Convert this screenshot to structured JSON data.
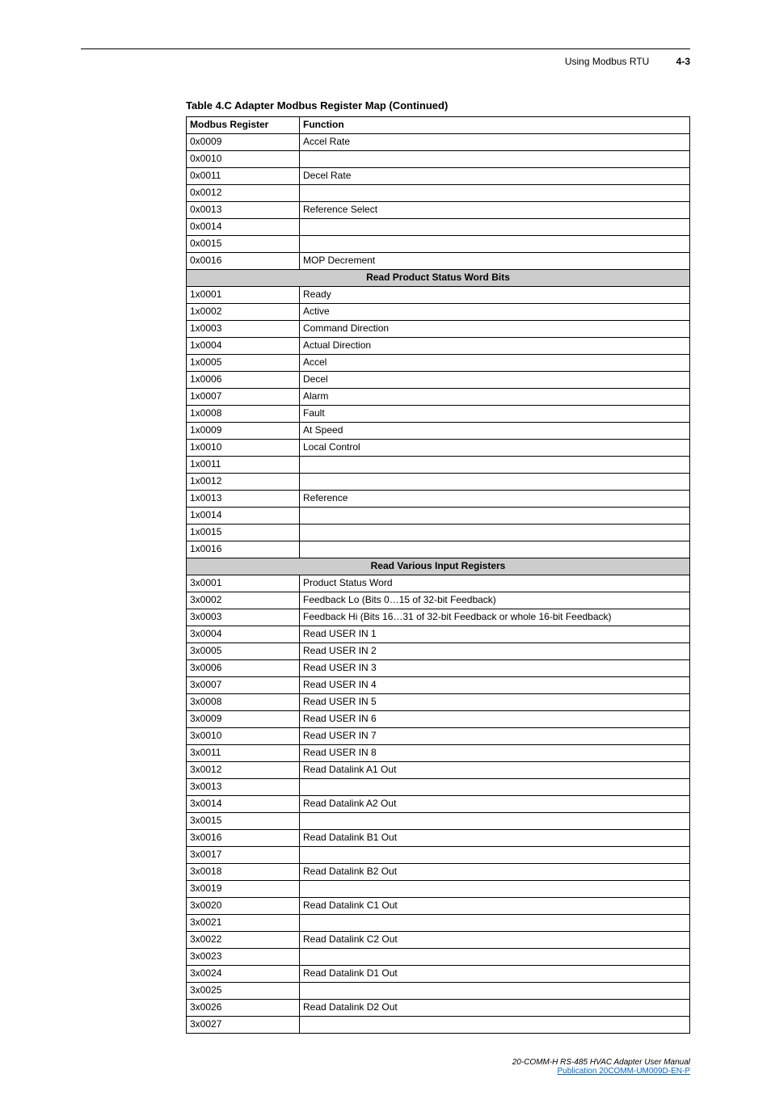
{
  "header": {
    "chapter": "Using Modbus RTU",
    "pagenum": "4-3"
  },
  "caption": "Table 4.C   Adapter Modbus Register Map (Continued)",
  "columns": {
    "reg": "Modbus Register",
    "func": "Function"
  },
  "rows": [
    {
      "reg": "0x0009",
      "func": "Accel Rate"
    },
    {
      "reg": "0x0010",
      "func": ""
    },
    {
      "reg": "0x0011",
      "func": "Decel Rate"
    },
    {
      "reg": "0x0012",
      "func": ""
    },
    {
      "reg": "0x0013",
      "func": "Reference Select"
    },
    {
      "reg": "0x0014",
      "func": ""
    },
    {
      "reg": "0x0015",
      "func": ""
    },
    {
      "reg": "0x0016",
      "func": "MOP Decrement"
    },
    {
      "section": "Read Product Status Word Bits"
    },
    {
      "reg": "1x0001",
      "func": "Ready"
    },
    {
      "reg": "1x0002",
      "func": "Active"
    },
    {
      "reg": "1x0003",
      "func": "Command Direction"
    },
    {
      "reg": "1x0004",
      "func": "Actual Direction"
    },
    {
      "reg": "1x0005",
      "func": "Accel"
    },
    {
      "reg": "1x0006",
      "func": "Decel"
    },
    {
      "reg": "1x0007",
      "func": "Alarm"
    },
    {
      "reg": "1x0008",
      "func": "Fault"
    },
    {
      "reg": "1x0009",
      "func": "At Speed"
    },
    {
      "reg": "1x0010",
      "func": "Local Control"
    },
    {
      "reg": "1x0011",
      "func": ""
    },
    {
      "reg": "1x0012",
      "func": ""
    },
    {
      "reg": "1x0013",
      "func": "Reference"
    },
    {
      "reg": "1x0014",
      "func": ""
    },
    {
      "reg": "1x0015",
      "func": ""
    },
    {
      "reg": "1x0016",
      "func": ""
    },
    {
      "section": "Read Various Input Registers"
    },
    {
      "reg": "3x0001",
      "func": "Product Status Word"
    },
    {
      "reg": "3x0002",
      "func": "Feedback Lo (Bits 0…15 of 32-bit Feedback)"
    },
    {
      "reg": "3x0003",
      "func": "Feedback Hi (Bits 16…31 of 32-bit Feedback or whole 16-bit Feedback)"
    },
    {
      "reg": "3x0004",
      "func": "Read USER IN 1"
    },
    {
      "reg": "3x0005",
      "func": "Read USER IN 2"
    },
    {
      "reg": "3x0006",
      "func": "Read USER IN 3"
    },
    {
      "reg": "3x0007",
      "func": "Read USER IN 4"
    },
    {
      "reg": "3x0008",
      "func": "Read USER IN 5"
    },
    {
      "reg": "3x0009",
      "func": "Read USER IN 6"
    },
    {
      "reg": "3x0010",
      "func": "Read USER IN 7"
    },
    {
      "reg": "3x0011",
      "func": "Read USER IN 8"
    },
    {
      "reg": "3x0012",
      "func": "Read Datalink A1 Out"
    },
    {
      "reg": "3x0013",
      "func": ""
    },
    {
      "reg": "3x0014",
      "func": "Read Datalink A2 Out"
    },
    {
      "reg": "3x0015",
      "func": ""
    },
    {
      "reg": "3x0016",
      "func": "Read Datalink B1 Out"
    },
    {
      "reg": "3x0017",
      "func": ""
    },
    {
      "reg": "3x0018",
      "func": "Read Datalink B2 Out"
    },
    {
      "reg": "3x0019",
      "func": ""
    },
    {
      "reg": "3x0020",
      "func": "Read Datalink C1 Out"
    },
    {
      "reg": "3x0021",
      "func": ""
    },
    {
      "reg": "3x0022",
      "func": "Read Datalink C2 Out"
    },
    {
      "reg": "3x0023",
      "func": ""
    },
    {
      "reg": "3x0024",
      "func": "Read Datalink D1 Out"
    },
    {
      "reg": "3x0025",
      "func": ""
    },
    {
      "reg": "3x0026",
      "func": "Read Datalink D2 Out"
    },
    {
      "reg": "3x0027",
      "func": ""
    }
  ],
  "footer": {
    "manual": "20-COMM-H RS-485 HVAC Adapter User Manual",
    "pub_label": "Publication 20COMM-UM009D-EN-P"
  }
}
